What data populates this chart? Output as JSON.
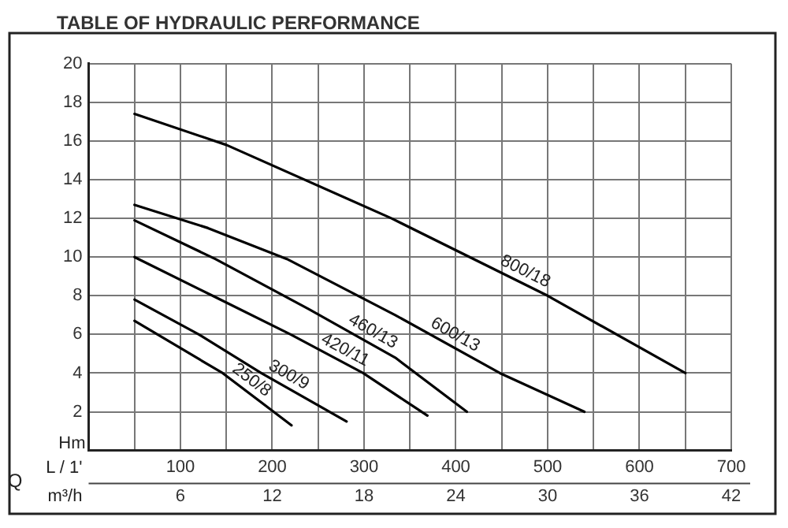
{
  "chart_data": {
    "type": "line",
    "title": "TABLE OF HYDRAULIC PERFORMANCE",
    "xlabel": "L / 1'",
    "x2label": "m³/h",
    "ylabel": "Hm",
    "annotations": [
      "Q"
    ],
    "xlim": [
      0,
      700
    ],
    "xticks": [
      {
        "value": 50,
        "label": null
      },
      100,
      {
        "value": 150,
        "label": null
      },
      200,
      {
        "value": 250,
        "label": null
      },
      300,
      {
        "value": 350,
        "label": null
      },
      400,
      {
        "value": 450,
        "label": null
      },
      500,
      {
        "value": 550,
        "label": null
      },
      600,
      {
        "value": 650,
        "label": null
      },
      700
    ],
    "x2lim": [
      0,
      42
    ],
    "x2ticks": [
      6,
      12,
      18,
      24,
      30,
      36,
      42
    ],
    "ylim": [
      0,
      20
    ],
    "yticks": [
      2,
      4,
      6,
      8,
      10,
      12,
      14,
      16,
      18,
      20
    ],
    "grid": true,
    "legend": false,
    "marker": "none",
    "line_style": "solid",
    "series": [
      {
        "name": "800/18",
        "color": "#000000",
        "x": [
          50,
          150,
          330,
          500,
          650
        ],
        "values": [
          17.4,
          15.8,
          12,
          8,
          4
        ]
      },
      {
        "name": "600/13",
        "color": "#000000",
        "x": [
          50,
          130,
          216,
          334,
          448,
          540
        ],
        "values": [
          12.7,
          11.5,
          9.9,
          7,
          4,
          2
        ]
      },
      {
        "name": "460/13",
        "color": "#000000",
        "x": [
          50,
          138,
          240,
          334,
          412
        ],
        "values": [
          11.9,
          9.9,
          7.3,
          4.8,
          2
        ]
      },
      {
        "name": "420/11",
        "color": "#000000",
        "x": [
          50,
          135,
          220,
          299,
          369
        ],
        "values": [
          10,
          8,
          6,
          4,
          1.8
        ]
      },
      {
        "name": "300/9",
        "color": "#000000",
        "x": [
          50,
          120,
          188,
          281
        ],
        "values": [
          7.8,
          6,
          4,
          1.5
        ]
      },
      {
        "name": "250/8",
        "color": "#000000",
        "x": [
          50,
          146,
          221
        ],
        "values": [
          6.7,
          4,
          1.3
        ]
      }
    ]
  }
}
